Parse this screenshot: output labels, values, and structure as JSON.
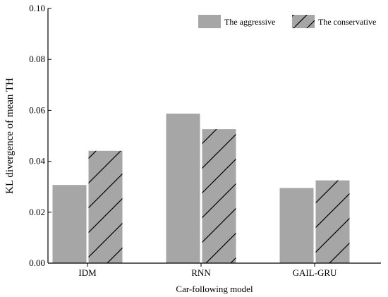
{
  "chart_data": {
    "type": "bar",
    "xlabel": "Car-following model",
    "ylabel": "KL divergence of mean TH",
    "categories": [
      "IDM",
      "RNN",
      "GAIL-GRU"
    ],
    "series": [
      {
        "name": "The aggressive",
        "values": [
          0.0307,
          0.0587,
          0.0295
        ],
        "color": "#a6a6a6",
        "pattern": "solid"
      },
      {
        "name": "The conservative",
        "values": [
          0.0441,
          0.0526,
          0.0325
        ],
        "color": "#a6a6a6",
        "pattern": "diagonal-hatch"
      }
    ],
    "ylim": [
      0,
      0.1
    ],
    "yticks": [
      "0.00",
      "0.02",
      "0.04",
      "0.06",
      "0.08",
      "0.10"
    ],
    "grid": false,
    "legend_position": "top-right"
  }
}
